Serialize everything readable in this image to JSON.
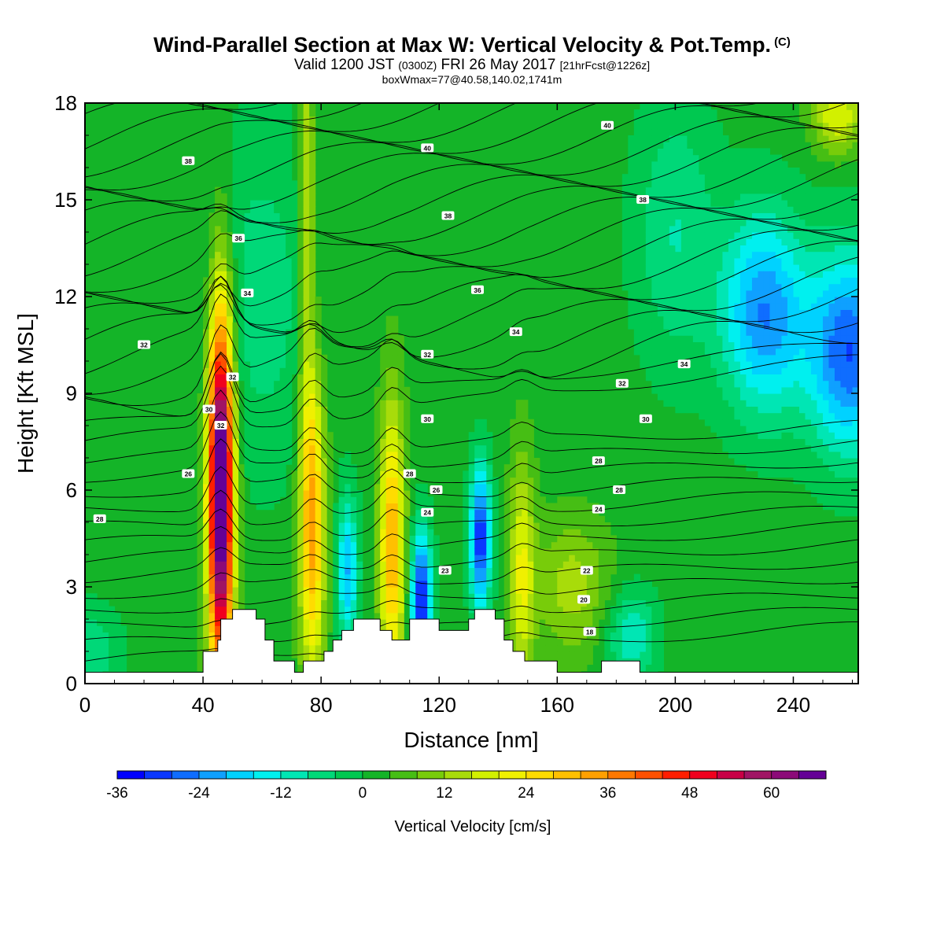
{
  "header": {
    "title": "Wind-Parallel Section at Max W: Vertical Velocity & Pot.Temp.",
    "copyright": "(C)",
    "valid_main": "Valid 1200 JST",
    "valid_utc": "(0300Z)",
    "valid_date": "FRI 26 May 2017",
    "forecast": "[21hrFcst@1226z]",
    "boxinfo": "boxWmax=77@40.58,140.02,1741m"
  },
  "chart_data": {
    "type": "heatmap",
    "title": "Wind-Parallel Section at Max W: Vertical Velocity & Pot.Temp.",
    "xlabel": "Distance [nm]",
    "ylabel": "Height [Kft MSL]",
    "xlim": [
      0,
      262
    ],
    "ylim": [
      0,
      18
    ],
    "xticks": [
      "0",
      "40",
      "80",
      "120",
      "160",
      "200",
      "240"
    ],
    "xtick_values": [
      0,
      40,
      80,
      120,
      160,
      200,
      240
    ],
    "yticks": [
      "0",
      "3",
      "6",
      "9",
      "12",
      "15",
      "18"
    ],
    "ytick_values": [
      0,
      3,
      6,
      9,
      12,
      15,
      18
    ],
    "colorbar": {
      "label": "Vertical Velocity [cm/s]",
      "min": -36,
      "max": 68,
      "step": 4,
      "ticks": [
        "-36",
        "-24",
        "-12",
        "0",
        "12",
        "24",
        "36",
        "48",
        "60"
      ],
      "tick_values": [
        -36,
        -24,
        -12,
        0,
        12,
        24,
        36,
        48,
        60
      ],
      "colors": [
        "#0000ff",
        "#0a37ff",
        "#0f6dff",
        "#0fa0ff",
        "#00d2ff",
        "#00f0ef",
        "#00e6b4",
        "#00d878",
        "#00c850",
        "#14b428",
        "#46be14",
        "#78cc0a",
        "#a8dc0a",
        "#d2f000",
        "#f0f000",
        "#ffdc00",
        "#ffc000",
        "#ffa000",
        "#ff7800",
        "#ff5000",
        "#ff1e00",
        "#f0001e",
        "#c80046",
        "#a01464",
        "#8c0a78",
        "#640096"
      ]
    },
    "theta_contour_labels": [
      "18",
      "20",
      "22",
      "23",
      "24",
      "26",
      "28",
      "30",
      "32",
      "34",
      "36",
      "38",
      "40"
    ],
    "updrafts": [
      {
        "x": 46,
        "peak_height_kft": 6.0,
        "w_max_cm_s": 77
      },
      {
        "x": 77,
        "peak_height_kft": 5.0,
        "w_max_cm_s": 32
      },
      {
        "x": 104,
        "peak_height_kft": 4.3,
        "w_max_cm_s": 30
      },
      {
        "x": 148,
        "peak_height_kft": 3.5,
        "w_max_cm_s": 18
      }
    ],
    "downdrafts": [
      {
        "x": 114,
        "peak_height_kft": 2.5,
        "w_min_cm_s": -36
      },
      {
        "x": 134,
        "peak_height_kft": 4.5,
        "w_min_cm_s": -34
      },
      {
        "x": 230,
        "peak_height_kft": 11.5,
        "w_min_cm_s": -26
      },
      {
        "x": 259,
        "peak_height_kft": 10.3,
        "w_min_cm_s": -30
      },
      {
        "x": 89,
        "peak_height_kft": 3.5,
        "w_min_cm_s": -22
      }
    ],
    "terrain_kft": [
      [
        0,
        0.35
      ],
      [
        40,
        0.35
      ],
      [
        40,
        1.0
      ],
      [
        45,
        1.0
      ],
      [
        45,
        1.35
      ],
      [
        46,
        1.35
      ],
      [
        46,
        2.0
      ],
      [
        50,
        2.0
      ],
      [
        50,
        2.3
      ],
      [
        58,
        2.3
      ],
      [
        58,
        2.0
      ],
      [
        61,
        2.0
      ],
      [
        61,
        1.35
      ],
      [
        64,
        1.35
      ],
      [
        64,
        0.7
      ],
      [
        71,
        0.7
      ],
      [
        71,
        0.35
      ],
      [
        74,
        0.35
      ],
      [
        74,
        0.7
      ],
      [
        81,
        0.7
      ],
      [
        81,
        1.0
      ],
      [
        84,
        1.0
      ],
      [
        84,
        1.35
      ],
      [
        87,
        1.35
      ],
      [
        87,
        1.65
      ],
      [
        91,
        1.65
      ],
      [
        91,
        2.0
      ],
      [
        100,
        2.0
      ],
      [
        100,
        1.65
      ],
      [
        104,
        1.65
      ],
      [
        104,
        1.35
      ],
      [
        110,
        1.35
      ],
      [
        110,
        2.0
      ],
      [
        120,
        2.0
      ],
      [
        120,
        1.65
      ],
      [
        130,
        1.65
      ],
      [
        130,
        2.0
      ],
      [
        132,
        2.0
      ],
      [
        132,
        2.3
      ],
      [
        139,
        2.3
      ],
      [
        139,
        2.0
      ],
      [
        142,
        2.0
      ],
      [
        142,
        1.35
      ],
      [
        145,
        1.35
      ],
      [
        145,
        1.0
      ],
      [
        149,
        1.0
      ],
      [
        149,
        0.7
      ],
      [
        160,
        0.7
      ],
      [
        160,
        0.35
      ],
      [
        175,
        0.35
      ],
      [
        175,
        0.7
      ],
      [
        188,
        0.7
      ],
      [
        188,
        0.35
      ],
      [
        262,
        0.35
      ]
    ]
  }
}
